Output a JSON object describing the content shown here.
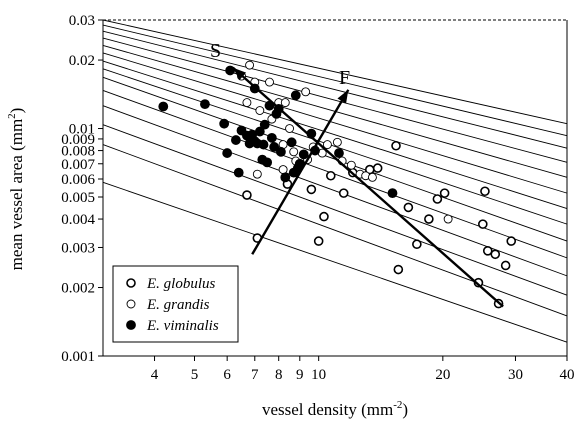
{
  "chart_data": {
    "type": "scatter",
    "title": "",
    "xlabel": "vessel density (mm",
    "xlabel_sup": "-2",
    "xlabel_end": ")",
    "ylabel": "mean vessel area (mm",
    "ylabel_sup": "2",
    "ylabel_end": ")",
    "x_scale": "log",
    "y_scale": "log",
    "xlim": [
      3,
      40
    ],
    "ylim": [
      0.001,
      0.03
    ],
    "x_ticks": [
      4,
      5,
      6,
      7,
      8,
      9,
      10,
      20,
      30,
      40
    ],
    "x_tick_labels": [
      "4",
      "5",
      "6",
      "7",
      "8",
      "9",
      "10",
      "20",
      "30",
      "40"
    ],
    "y_ticks": [
      0.001,
      0.002,
      0.003,
      0.004,
      0.005,
      0.006,
      0.007,
      0.008,
      0.009,
      0.01,
      0.02,
      0.03
    ],
    "y_tick_labels": [
      "0.001",
      "0.002",
      "0.003",
      "0.004",
      "0.005",
      "0.006",
      "0.007",
      "0.008",
      "0.009",
      "0.01",
      "0.02",
      "0.03"
    ],
    "legend_position": "bottom-left",
    "series": [
      {
        "name": "E. globulus",
        "marker": "open-circle-thick",
        "points": [
          [
            7.1,
            0.0033
          ],
          [
            10.0,
            0.0032
          ],
          [
            10.3,
            0.0041
          ],
          [
            15.6,
            0.0024
          ],
          [
            17.3,
            0.0031
          ],
          [
            20.2,
            0.0052
          ],
          [
            25.3,
            0.0053
          ],
          [
            25.0,
            0.0038
          ],
          [
            25.7,
            0.0029
          ],
          [
            26.8,
            0.0028
          ],
          [
            28.4,
            0.0025
          ],
          [
            29.3,
            0.0032
          ],
          [
            24.4,
            0.0021
          ],
          [
            9.6,
            0.0054
          ],
          [
            12.1,
            0.0064
          ],
          [
            13.3,
            0.0066
          ],
          [
            15.4,
            0.0084
          ],
          [
            18.5,
            0.004
          ],
          [
            19.4,
            0.0049
          ],
          [
            11.5,
            0.0052
          ],
          [
            8.4,
            0.0057
          ],
          [
            6.7,
            0.0051
          ],
          [
            10.7,
            0.0062
          ],
          [
            13.9,
            0.0067
          ],
          [
            16.5,
            0.0045
          ],
          [
            27.3,
            0.0017
          ]
        ]
      },
      {
        "name": "E. grandis",
        "marker": "open-circle",
        "points": [
          [
            6.8,
            0.019
          ],
          [
            7.0,
            0.016
          ],
          [
            7.6,
            0.016
          ],
          [
            8.0,
            0.013
          ],
          [
            8.3,
            0.013
          ],
          [
            9.3,
            0.0145
          ],
          [
            6.7,
            0.013
          ],
          [
            7.2,
            0.012
          ],
          [
            7.7,
            0.011
          ],
          [
            8.2,
            0.0085
          ],
          [
            8.7,
            0.0079
          ],
          [
            9.4,
            0.0073
          ],
          [
            10.2,
            0.0078
          ],
          [
            11.4,
            0.0072
          ],
          [
            12.0,
            0.0069
          ],
          [
            12.6,
            0.0063
          ],
          [
            13.0,
            0.0062
          ],
          [
            7.1,
            0.0063
          ],
          [
            8.2,
            0.0066
          ],
          [
            9.0,
            0.0069
          ],
          [
            8.5,
            0.01
          ],
          [
            9.7,
            0.0083
          ],
          [
            6.5,
            0.017
          ],
          [
            8.8,
            0.0072
          ],
          [
            10.5,
            0.0085
          ],
          [
            20.6,
            0.004
          ],
          [
            11.1,
            0.0087
          ],
          [
            13.5,
            0.0061
          ]
        ]
      },
      {
        "name": "E. viminalis",
        "marker": "filled-circle",
        "points": [
          [
            4.2,
            0.0125
          ],
          [
            5.3,
            0.0128
          ],
          [
            5.9,
            0.0105
          ],
          [
            6.0,
            0.0078
          ],
          [
            6.1,
            0.018
          ],
          [
            6.3,
            0.0089
          ],
          [
            6.5,
            0.0098
          ],
          [
            6.7,
            0.0093
          ],
          [
            6.8,
            0.0086
          ],
          [
            6.9,
            0.0094
          ],
          [
            7.0,
            0.015
          ],
          [
            7.1,
            0.0086
          ],
          [
            7.2,
            0.0097
          ],
          [
            7.3,
            0.0073
          ],
          [
            7.4,
            0.0104
          ],
          [
            7.5,
            0.0071
          ],
          [
            7.6,
            0.0126
          ],
          [
            7.7,
            0.0091
          ],
          [
            7.8,
            0.0083
          ],
          [
            7.9,
            0.0116
          ],
          [
            8.1,
            0.0079
          ],
          [
            8.3,
            0.0061
          ],
          [
            8.6,
            0.0087
          ],
          [
            8.8,
            0.014
          ],
          [
            8.9,
            0.0067
          ],
          [
            9.2,
            0.0077
          ],
          [
            9.6,
            0.0095
          ],
          [
            9.8,
            0.008
          ],
          [
            11.2,
            0.0078
          ],
          [
            15.1,
            0.0052
          ],
          [
            6.4,
            0.0064
          ],
          [
            7.35,
            0.0085
          ],
          [
            7.0,
            0.0088
          ],
          [
            8.0,
            0.0122
          ],
          [
            8.7,
            0.0064
          ],
          [
            9.0,
            0.007
          ]
        ]
      }
    ],
    "iso_lines": {
      "description": "parallel reference lines",
      "endpoints": [
        [
          3,
          40
        ]
      ],
      "y_at_x3": [
        0.03,
        0.0285,
        0.0268,
        0.025,
        0.0232,
        0.0215,
        0.0198,
        0.0183,
        0.0168,
        0.0147,
        0.0126,
        0.0104,
        0.0085,
        0.0058
      ],
      "y_at_x40": [
        0.0105,
        0.0093,
        0.0082,
        0.0071,
        0.0061,
        0.0052,
        0.00445,
        0.0038,
        0.0032,
        0.0027,
        0.00225,
        0.00185,
        0.0015,
        0.00115
      ],
      "top_dashed_y": 0.03
    },
    "annotations": [
      {
        "label": "S",
        "from": [
          28.0,
          0.00165
        ],
        "to": [
          6.2,
          0.0185
        ]
      },
      {
        "label": "F",
        "from": [
          6.9,
          0.0028
        ],
        "to": [
          11.8,
          0.0148
        ]
      }
    ]
  }
}
